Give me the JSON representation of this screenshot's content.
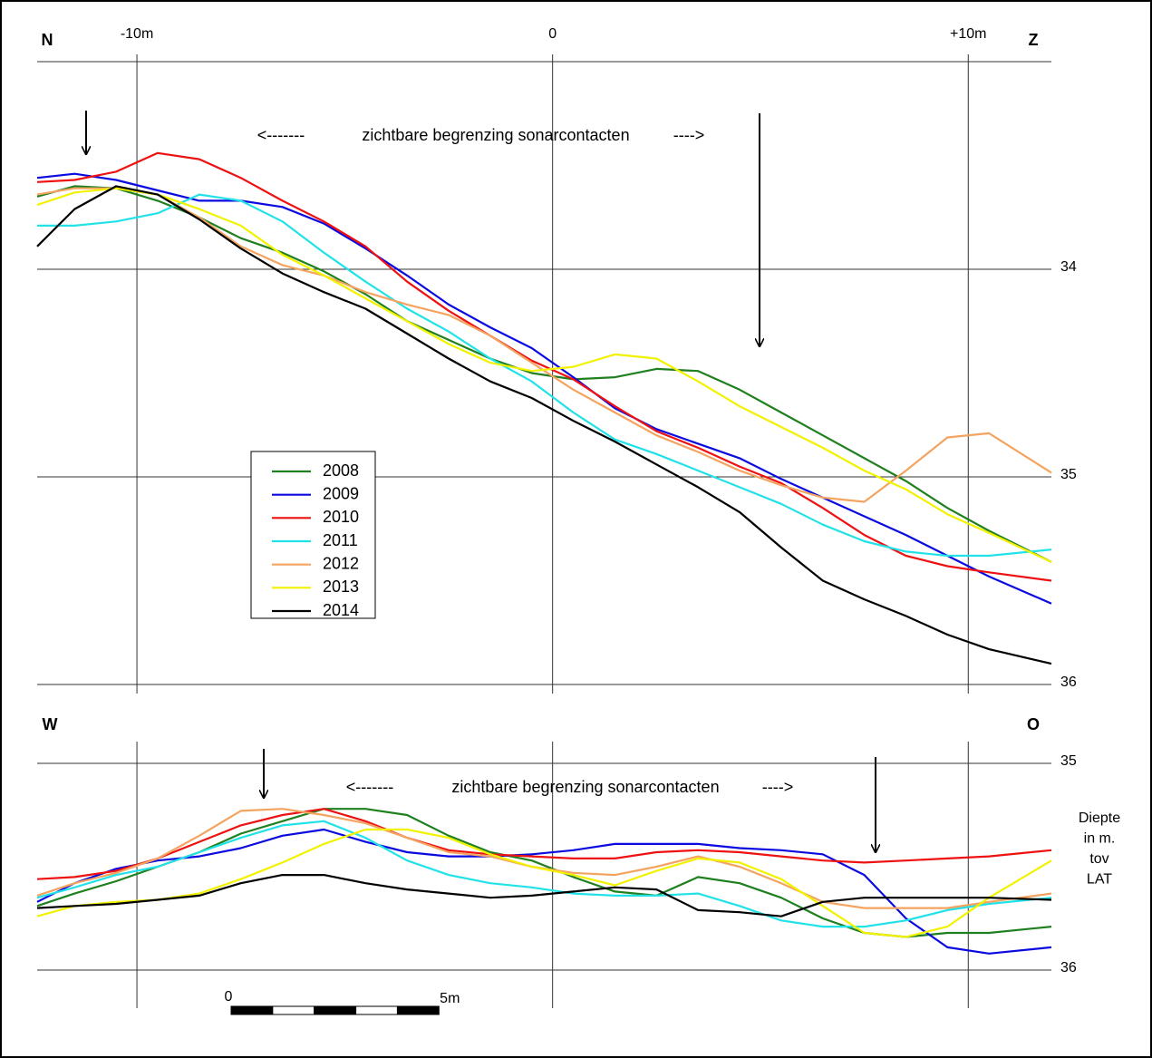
{
  "chart_data": [
    {
      "type": "line",
      "corner_labels": [
        "N",
        "Z"
      ],
      "annotations": [
        "<-------",
        "zichtbare begrenzing sonarcontacten",
        "---->"
      ],
      "x": [
        -12.4,
        -11.5,
        -10.5,
        -9.5,
        -8.5,
        -7.5,
        -6.5,
        -5.5,
        -4.5,
        -3.5,
        -2.5,
        -1.5,
        -0.5,
        0.5,
        1.5,
        2.5,
        3.5,
        4.5,
        5.5,
        6.5,
        7.5,
        8.5,
        9.5,
        10.5,
        12
      ],
      "xlim": [
        -12.4,
        12
      ],
      "xticks": [
        {
          "value": -10,
          "label": "-10m"
        },
        0,
        {
          "value": 10,
          "label": "+10m"
        }
      ],
      "ylim": [
        33,
        36
      ],
      "y_inverted": true,
      "yticks": [
        34,
        35,
        36
      ],
      "grid": true,
      "legend": "center-left",
      "series": [
        {
          "name": "2008",
          "color": "#1f801f",
          "values": [
            33.65,
            33.6,
            33.61,
            33.67,
            33.75,
            33.85,
            33.92,
            34.01,
            34.12,
            34.25,
            34.34,
            34.43,
            34.5,
            34.53,
            34.52,
            34.48,
            34.49,
            34.58,
            34.69,
            34.8,
            34.91,
            35.02,
            35.15,
            35.26,
            35.41
          ]
        },
        {
          "name": "2009",
          "color": "#0a0ae0",
          "values": [
            33.56,
            33.54,
            33.57,
            33.62,
            33.67,
            33.67,
            33.7,
            33.78,
            33.9,
            34.03,
            34.17,
            34.28,
            34.38,
            34.52,
            34.67,
            34.77,
            34.84,
            34.91,
            35.01,
            35.1,
            35.19,
            35.28,
            35.38,
            35.48,
            35.61
          ]
        },
        {
          "name": "2010",
          "color": "#ee1111",
          "values": [
            33.58,
            33.57,
            33.53,
            33.44,
            33.47,
            33.56,
            33.67,
            33.77,
            33.89,
            34.06,
            34.2,
            34.32,
            34.44,
            34.53,
            34.66,
            34.78,
            34.86,
            34.95,
            35.03,
            35.15,
            35.28,
            35.38,
            35.43,
            35.46,
            35.5
          ]
        },
        {
          "name": "2011",
          "color": "#22e2e8",
          "values": [
            33.79,
            33.79,
            33.77,
            33.73,
            33.64,
            33.67,
            33.77,
            33.92,
            34.06,
            34.19,
            34.3,
            34.43,
            34.54,
            34.69,
            34.82,
            34.89,
            34.97,
            35.05,
            35.13,
            35.23,
            35.31,
            35.36,
            35.38,
            35.38,
            35.35
          ]
        },
        {
          "name": "2012",
          "color": "#f4a460",
          "values": [
            33.64,
            33.61,
            33.61,
            33.64,
            33.75,
            33.89,
            33.98,
            34.03,
            34.11,
            34.17,
            34.22,
            34.32,
            34.45,
            34.58,
            34.69,
            34.8,
            34.88,
            34.97,
            35.04,
            35.1,
            35.12,
            34.97,
            34.81,
            34.79,
            34.98
          ]
        },
        {
          "name": "2013",
          "color": "#f2f200",
          "values": [
            33.69,
            33.63,
            33.61,
            33.64,
            33.71,
            33.79,
            33.93,
            34.03,
            34.14,
            34.25,
            34.36,
            34.45,
            34.49,
            34.47,
            34.41,
            34.43,
            34.54,
            34.66,
            34.76,
            34.86,
            34.97,
            35.06,
            35.18,
            35.27,
            35.41
          ]
        },
        {
          "name": "2014",
          "color": "#000000",
          "values": [
            33.89,
            33.71,
            33.6,
            33.64,
            33.76,
            33.9,
            34.02,
            34.11,
            34.19,
            34.31,
            34.43,
            34.54,
            34.62,
            34.73,
            34.83,
            34.94,
            35.05,
            35.17,
            35.34,
            35.5,
            35.59,
            35.67,
            35.76,
            35.83,
            35.9
          ]
        }
      ]
    },
    {
      "type": "line",
      "corner_labels": [
        "W",
        "O"
      ],
      "annotations": [
        "<-------",
        "zichtbare begrenzing sonarcontacten",
        "---->"
      ],
      "ylabel": [
        "Diepte",
        "in m.",
        "tov",
        "LAT"
      ],
      "scale_bar": [
        0,
        {
          "value": 5,
          "label": "5m"
        }
      ],
      "x": [
        -12.4,
        -11.5,
        -10.5,
        -9.5,
        -8.5,
        -7.5,
        -6.5,
        -5.5,
        -4.5,
        -3.5,
        -2.5,
        -1.5,
        -0.5,
        0.5,
        1.5,
        2.5,
        3.5,
        4.5,
        5.5,
        6.5,
        7.5,
        8.5,
        9.5,
        10.5,
        12
      ],
      "xlim": [
        -12.4,
        12
      ],
      "xticks": [
        -10,
        0,
        10
      ],
      "xtick_labels": false,
      "ylim": [
        35,
        36
      ],
      "y_inverted": true,
      "yticks": [
        35,
        36
      ],
      "grid": true,
      "series": [
        {
          "color": "#1f801f",
          "values": [
            35.69,
            35.63,
            35.57,
            35.5,
            35.43,
            35.34,
            35.28,
            35.22,
            35.22,
            35.25,
            35.35,
            35.43,
            35.47,
            35.55,
            35.62,
            35.64,
            35.55,
            35.58,
            35.65,
            35.75,
            35.82,
            35.84,
            35.82,
            35.82,
            35.79
          ]
        },
        {
          "color": "#0a0ae0",
          "values": [
            35.67,
            35.58,
            35.51,
            35.47,
            35.45,
            35.41,
            35.35,
            35.32,
            35.38,
            35.43,
            35.45,
            35.45,
            35.44,
            35.42,
            35.39,
            35.39,
            35.39,
            35.41,
            35.42,
            35.44,
            35.54,
            35.75,
            35.89,
            35.92,
            35.89
          ]
        },
        {
          "color": "#ee1111",
          "values": [
            35.56,
            35.55,
            35.52,
            35.46,
            35.38,
            35.3,
            35.25,
            35.22,
            35.28,
            35.36,
            35.42,
            35.44,
            35.45,
            35.46,
            35.46,
            35.43,
            35.42,
            35.43,
            35.45,
            35.47,
            35.48,
            35.47,
            35.46,
            35.45,
            35.42
          ]
        },
        {
          "color": "#22e2e8",
          "values": [
            35.65,
            35.6,
            35.54,
            35.5,
            35.43,
            35.36,
            35.3,
            35.28,
            35.36,
            35.47,
            35.54,
            35.58,
            35.6,
            35.63,
            35.64,
            35.64,
            35.63,
            35.69,
            35.76,
            35.79,
            35.79,
            35.76,
            35.71,
            35.68,
            35.65
          ]
        },
        {
          "color": "#f4a460",
          "values": [
            35.64,
            35.58,
            35.53,
            35.46,
            35.35,
            35.23,
            35.22,
            35.25,
            35.29,
            35.36,
            35.43,
            35.45,
            35.5,
            35.53,
            35.54,
            35.5,
            35.45,
            35.5,
            35.58,
            35.67,
            35.7,
            35.7,
            35.7,
            35.67,
            35.63
          ]
        },
        {
          "color": "#f2f200",
          "values": [
            35.74,
            35.69,
            35.67,
            35.66,
            35.63,
            35.56,
            35.48,
            35.39,
            35.32,
            35.32,
            35.36,
            35.44,
            35.5,
            35.54,
            35.59,
            35.52,
            35.46,
            35.48,
            35.56,
            35.69,
            35.82,
            35.84,
            35.79,
            35.65,
            35.47
          ]
        },
        {
          "color": "#000000",
          "values": [
            35.7,
            35.69,
            35.68,
            35.66,
            35.64,
            35.58,
            35.54,
            35.54,
            35.58,
            35.61,
            35.63,
            35.65,
            35.64,
            35.62,
            35.6,
            35.61,
            35.71,
            35.72,
            35.74,
            35.67,
            35.65,
            35.65,
            35.65,
            35.65,
            35.66
          ]
        }
      ]
    }
  ]
}
